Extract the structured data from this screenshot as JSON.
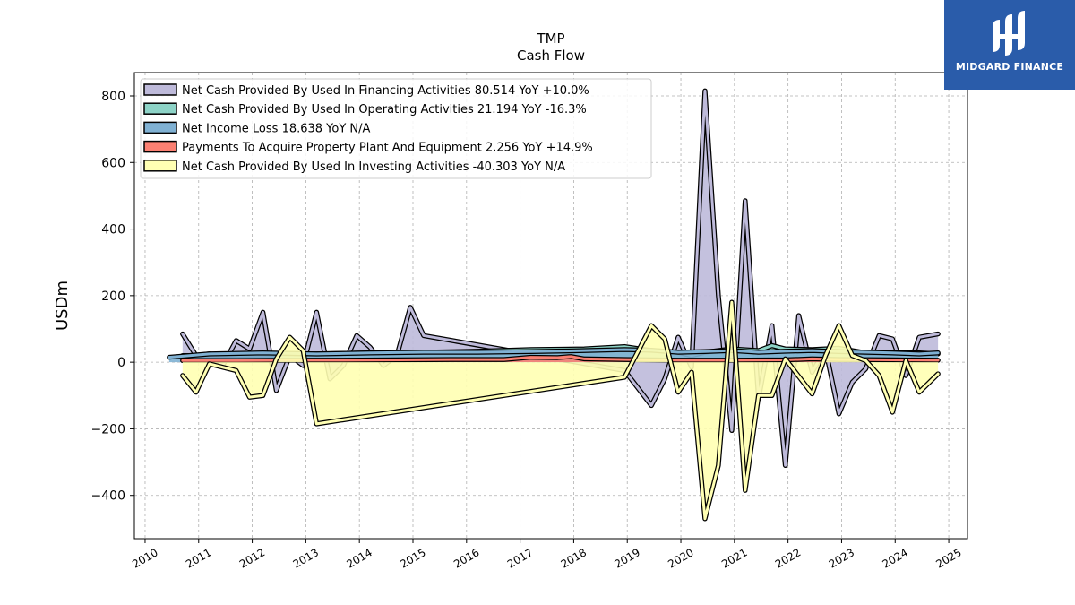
{
  "title": "TMP",
  "subtitle": "Cash Flow",
  "brand": {
    "name": "MIDGARD FINANCE",
    "color": "#2a5caa"
  },
  "chart_data": {
    "type": "area",
    "title": "TMP",
    "subtitle": "Cash Flow",
    "xlabel": "",
    "ylabel": "USDm",
    "xlim": [
      2009.8,
      2025.35
    ],
    "ylim": [
      -530,
      870
    ],
    "x_ticks": [
      "2010",
      "2011",
      "2012",
      "2013",
      "2014",
      "2015",
      "2016",
      "2017",
      "2018",
      "2019",
      "2020",
      "2021",
      "2022",
      "2023",
      "2024",
      "2025"
    ],
    "y_ticks": [
      -400,
      -200,
      0,
      200,
      400,
      600,
      800
    ],
    "y_tick_labels": [
      "−400",
      "−200",
      "0",
      "200",
      "400",
      "600",
      "800"
    ],
    "grid": true,
    "legend_position": "top-left",
    "series": [
      {
        "name": "Net Cash Provided By Used In Financing Activities",
        "legend": "Net Cash Provided By Used In Financing Activities  80.514 YoY +10.0%",
        "color": "#bebada",
        "points": [
          [
            2010.7,
            85
          ],
          [
            2010.95,
            20
          ],
          [
            2011.2,
            25
          ],
          [
            2011.45,
            -10
          ],
          [
            2011.7,
            65
          ],
          [
            2011.95,
            40
          ],
          [
            2012.2,
            150
          ],
          [
            2012.45,
            -85
          ],
          [
            2012.7,
            20
          ],
          [
            2012.95,
            -10
          ],
          [
            2013.2,
            150
          ],
          [
            2013.45,
            -50
          ],
          [
            2013.7,
            -10
          ],
          [
            2013.95,
            80
          ],
          [
            2014.2,
            45
          ],
          [
            2014.45,
            -10
          ],
          [
            2014.7,
            20
          ],
          [
            2014.95,
            165
          ],
          [
            2015.2,
            80
          ],
          [
            2018.95,
            -25
          ],
          [
            2019.45,
            -130
          ],
          [
            2019.7,
            -50
          ],
          [
            2019.95,
            75
          ],
          [
            2020.2,
            -15
          ],
          [
            2020.45,
            815
          ],
          [
            2020.7,
            200
          ],
          [
            2020.95,
            -205
          ],
          [
            2021.2,
            485
          ],
          [
            2021.45,
            -110
          ],
          [
            2021.7,
            110
          ],
          [
            2021.95,
            -310
          ],
          [
            2022.2,
            140
          ],
          [
            2022.45,
            -30
          ],
          [
            2022.7,
            40
          ],
          [
            2022.95,
            -155
          ],
          [
            2023.2,
            -60
          ],
          [
            2023.45,
            -20
          ],
          [
            2023.7,
            80
          ],
          [
            2023.95,
            70
          ],
          [
            2024.2,
            -40
          ],
          [
            2024.45,
            75
          ],
          [
            2024.8,
            85
          ]
        ]
      },
      {
        "name": "Net Cash Provided By Used In Operating Activities",
        "legend": "Net Cash Provided By Used In Operating Activities  21.194 YoY -16.3%",
        "color": "#8dd3c7",
        "points": [
          [
            2010.7,
            20
          ],
          [
            2011.2,
            20
          ],
          [
            2012.2,
            22
          ],
          [
            2013.2,
            25
          ],
          [
            2014.2,
            28
          ],
          [
            2015.2,
            30
          ],
          [
            2016.2,
            33
          ],
          [
            2017.2,
            38
          ],
          [
            2018.2,
            40
          ],
          [
            2018.95,
            47
          ],
          [
            2019.45,
            35
          ],
          [
            2019.95,
            30
          ],
          [
            2020.2,
            20
          ],
          [
            2020.45,
            30
          ],
          [
            2020.95,
            40
          ],
          [
            2021.45,
            35
          ],
          [
            2021.7,
            50
          ],
          [
            2021.95,
            40
          ],
          [
            2022.45,
            38
          ],
          [
            2022.95,
            42
          ],
          [
            2023.45,
            28
          ],
          [
            2023.95,
            30
          ],
          [
            2024.45,
            28
          ],
          [
            2024.8,
            25
          ]
        ]
      },
      {
        "name": "Net Income Loss",
        "legend": "Net Income Loss  18.638 YoY N/A",
        "color": "#80b1d3",
        "points": [
          [
            2010.45,
            15
          ],
          [
            2011.2,
            25
          ],
          [
            2012.2,
            28
          ],
          [
            2013.2,
            25
          ],
          [
            2014.2,
            28
          ],
          [
            2015.2,
            30
          ],
          [
            2016.2,
            30
          ],
          [
            2017.2,
            32
          ],
          [
            2018.2,
            35
          ],
          [
            2018.95,
            38
          ],
          [
            2019.45,
            36
          ],
          [
            2019.95,
            30
          ],
          [
            2020.45,
            32
          ],
          [
            2020.95,
            35
          ],
          [
            2021.45,
            30
          ],
          [
            2021.95,
            33
          ],
          [
            2022.45,
            35
          ],
          [
            2022.95,
            32
          ],
          [
            2023.45,
            30
          ],
          [
            2023.95,
            28
          ],
          [
            2024.45,
            25
          ],
          [
            2024.8,
            28
          ]
        ]
      },
      {
        "name": "Payments To Acquire Property Plant And Equipment",
        "legend": "Payments To Acquire Property Plant And Equipment  2.256 YoY +14.9%",
        "color": "#fb8072",
        "points": [
          [
            2010.7,
            5
          ],
          [
            2011.7,
            5
          ],
          [
            2012.7,
            6
          ],
          [
            2013.7,
            6
          ],
          [
            2014.7,
            7
          ],
          [
            2015.7,
            8
          ],
          [
            2016.7,
            8
          ],
          [
            2017.2,
            15
          ],
          [
            2017.7,
            14
          ],
          [
            2017.95,
            17
          ],
          [
            2018.2,
            10
          ],
          [
            2018.95,
            8
          ],
          [
            2019.95,
            6
          ],
          [
            2020.95,
            6
          ],
          [
            2021.95,
            7
          ],
          [
            2022.45,
            10
          ],
          [
            2022.95,
            8
          ],
          [
            2023.95,
            7
          ],
          [
            2024.8,
            6
          ]
        ]
      },
      {
        "name": "Net Cash Provided By Used In Investing Activities",
        "legend": "Net Cash Provided By Used In Investing Activities  -40.303 YoY N/A",
        "color": "#ffffb3",
        "points": [
          [
            2010.7,
            -40
          ],
          [
            2010.95,
            -90
          ],
          [
            2011.2,
            -5
          ],
          [
            2011.7,
            -25
          ],
          [
            2011.95,
            -105
          ],
          [
            2012.2,
            -100
          ],
          [
            2012.45,
            10
          ],
          [
            2012.7,
            75
          ],
          [
            2012.95,
            35
          ],
          [
            2013.2,
            -185
          ],
          [
            2018.95,
            -45
          ],
          [
            2019.45,
            110
          ],
          [
            2019.7,
            70
          ],
          [
            2019.95,
            -90
          ],
          [
            2020.2,
            -30
          ],
          [
            2020.45,
            -470
          ],
          [
            2020.7,
            -310
          ],
          [
            2020.95,
            180
          ],
          [
            2021.2,
            -385
          ],
          [
            2021.45,
            -100
          ],
          [
            2021.7,
            -100
          ],
          [
            2021.95,
            10
          ],
          [
            2022.45,
            -95
          ],
          [
            2022.7,
            20
          ],
          [
            2022.95,
            110
          ],
          [
            2023.2,
            20
          ],
          [
            2023.45,
            5
          ],
          [
            2023.7,
            -40
          ],
          [
            2023.95,
            -150
          ],
          [
            2024.2,
            5
          ],
          [
            2024.45,
            -90
          ],
          [
            2024.8,
            -35
          ]
        ]
      }
    ]
  }
}
